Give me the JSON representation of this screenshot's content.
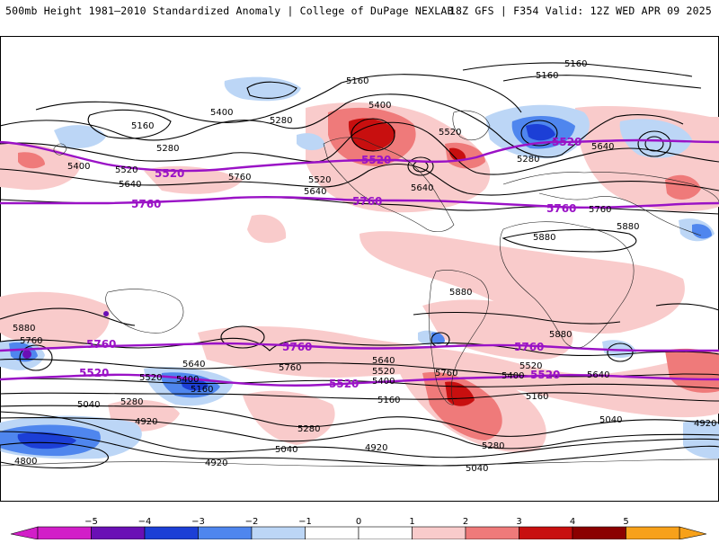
{
  "header": {
    "title_left": "500mb Height 1981–2010 Standardized Anomaly | College of DuPage NEXLAB",
    "title_right": "18Z GFS | F354 Valid: 12Z WED APR 09 2025"
  },
  "colors": {
    "neg5": "#d21ec8",
    "neg4": "#6a0fb5",
    "neg3": "#1c3fd6",
    "neg2": "#4f86ee",
    "neg1": "#bcd6f6",
    "zero": "#ffffff",
    "pos1": "#f9cbcb",
    "pos2": "#ef7a7a",
    "pos3": "#c80f0f",
    "pos4": "#8b0000",
    "pos5": "#f7a11a",
    "contour": "#000000",
    "ref_contour": "#9a12c6"
  },
  "colorbar": {
    "ticks": [
      "−5",
      "−4",
      "−3",
      "−2",
      "−1",
      "0",
      "1",
      "2",
      "3",
      "4",
      "5"
    ]
  },
  "contour_labels": {
    "n5160_a": "5160",
    "n5160_b": "5160",
    "n5160_c": "5160",
    "n5160_d": "5160",
    "n5280_a": "5280",
    "n5280_b": "5280",
    "n5280_c": "5280",
    "n5400_a": "5400",
    "n5400_b": "5400",
    "n5400_c": "5400",
    "n5520_a": "5520",
    "n5520_b": "5520",
    "n5520_c": "5520",
    "n5640_a": "5640",
    "n5640_b": "5640",
    "n5640_c": "5640",
    "n5640_d": "5640",
    "n5760_a": "5760",
    "n5760_b": "5760",
    "n5880_a": "5880",
    "n5880_b": "5880",
    "s5880_a": "5880",
    "s5880_b": "5880",
    "s5880_c": "5880",
    "s5760_a": "5760",
    "s5760_b": "5760",
    "s5760_c": "5760",
    "s5640_a": "5640",
    "s5640_b": "5640",
    "s5640_c": "5640",
    "s5520_a": "5520",
    "s5520_b": "5520",
    "s5520_c": "5520",
    "s5400_a": "5400",
    "s5400_b": "5400",
    "s5400_c": "5400",
    "s5280_a": "5280",
    "s5280_b": "5280",
    "s5280_c": "5280",
    "s5160_a": "5160",
    "s5160_b": "5160",
    "s5160_c": "5160",
    "s5040_a": "5040",
    "s5040_b": "5040",
    "s5040_c": "5040",
    "s5040_d": "5040",
    "s4920_a": "4920",
    "s4920_b": "4920",
    "s4920_c": "4920",
    "s4920_d": "4920",
    "s4800_a": "4800",
    "p5520_n1": "5520",
    "p5520_n2": "5520",
    "p5520_n3": "5520",
    "p5760_n1": "5760",
    "p5760_n2": "5760",
    "p5760_n3": "5760",
    "p5760_s1": "5760",
    "p5760_s2": "5760",
    "p5760_s3": "5760",
    "p5520_s1": "5520",
    "p5520_s2": "5520",
    "p5520_s3": "5520"
  }
}
